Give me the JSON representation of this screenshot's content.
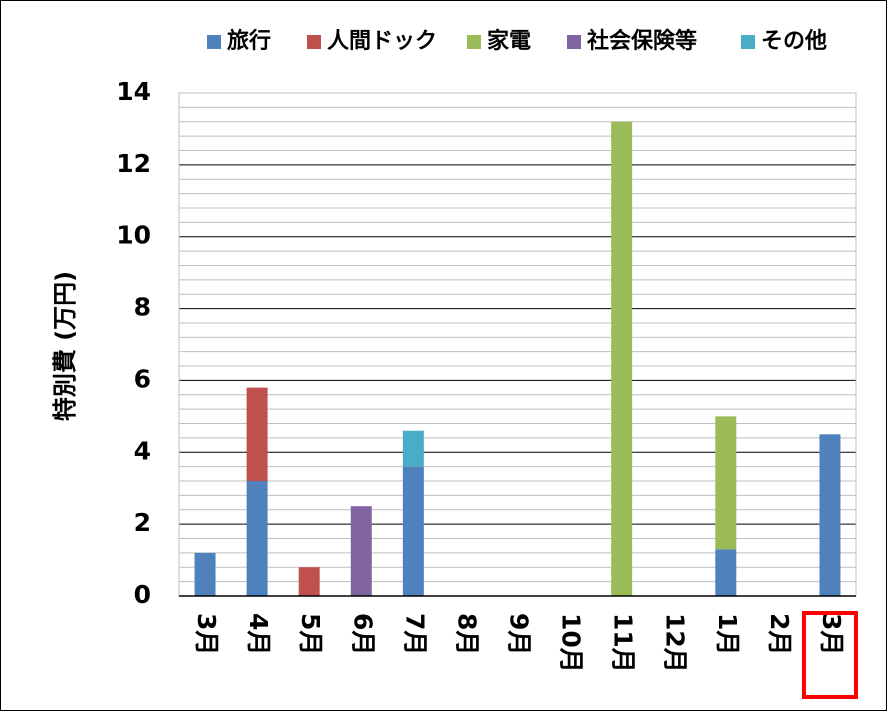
{
  "chart_data": {
    "type": "bar",
    "stacked": true,
    "categories": [
      "3月",
      "4月",
      "5月",
      "6月",
      "7月",
      "8月",
      "9月",
      "10月",
      "11月",
      "12月",
      "1月",
      "2月",
      "3月"
    ],
    "series": [
      {
        "name": "旅行",
        "color": "#4F81BD",
        "values": [
          1.2,
          3.2,
          0,
          0,
          3.6,
          0,
          0,
          0,
          0,
          0,
          1.3,
          0,
          4.5
        ]
      },
      {
        "name": "人間ドック",
        "color": "#C0504D",
        "values": [
          0,
          2.6,
          0.8,
          0,
          0,
          0,
          0,
          0,
          0,
          0,
          0,
          0,
          0
        ]
      },
      {
        "name": "家電",
        "color": "#9BBB59",
        "values": [
          0,
          0,
          0,
          0,
          0,
          0,
          0,
          0,
          13.2,
          0,
          3.7,
          0,
          0
        ]
      },
      {
        "name": "社会保険等",
        "color": "#8064A2",
        "values": [
          0,
          0,
          0,
          2.5,
          0,
          0,
          0,
          0,
          0,
          0,
          0,
          0,
          0
        ]
      },
      {
        "name": "その他",
        "color": "#4BACC6",
        "values": [
          0,
          0,
          0,
          0,
          1.0,
          0,
          0,
          0,
          0,
          0,
          0,
          0,
          0
        ]
      }
    ],
    "ylabel": "特別費 (万円)",
    "ylim": [
      0,
      14
    ],
    "yticks": [
      "0",
      "2",
      "4",
      "6",
      "8",
      "10",
      "12",
      "14"
    ],
    "grid": {
      "major_step": 2,
      "minor_step": 0.4
    },
    "legend_position": "top-right",
    "highlighted_category": "3月",
    "highlight_color": "#FF0000"
  }
}
